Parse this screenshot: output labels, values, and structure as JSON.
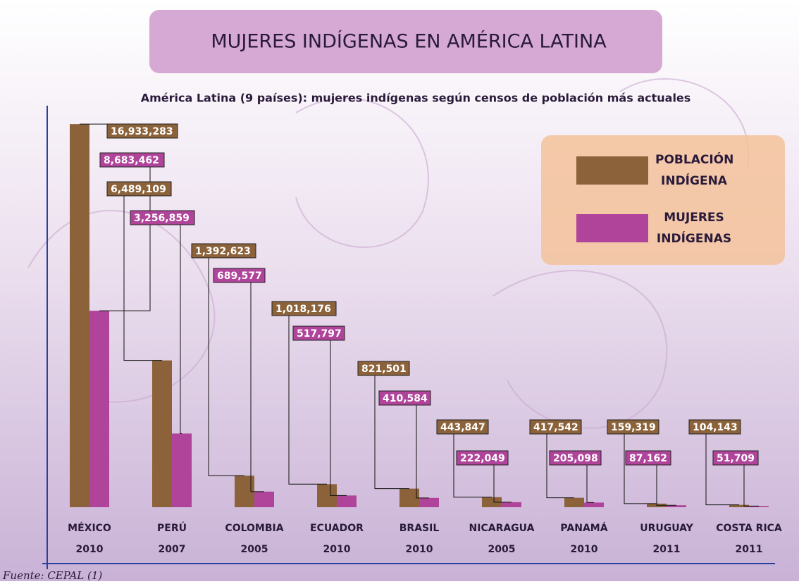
{
  "chart_data": {
    "type": "bar",
    "title": "MUJERES INDÍGENAS EN AMÉRICA LATINA",
    "subtitle": "América Latina (9 países): mujeres indígenas según censos de  población más actuales",
    "source": "Fuente:  CEPAL (1)",
    "categories": [
      "MÉXICO",
      "PERÚ",
      "COLOMBIA",
      "ECUADOR",
      "BRASIL",
      "NICARAGUA",
      "PANAMÁ",
      "URUGUAY",
      "COSTA RICA"
    ],
    "category_years": [
      "2010",
      "2007",
      "2005",
      "2010",
      "2010",
      "2005",
      "2010",
      "2011",
      "2011"
    ],
    "ylim": [
      0,
      17000000
    ],
    "series": [
      {
        "name": "POBLACIÓN INDÍGENA",
        "color": "#8b6239",
        "values": [
          16933283,
          6489109,
          1392623,
          1018176,
          821501,
          443847,
          417542,
          159319,
          104143
        ],
        "value_labels": [
          "16,933,283",
          "6,489,109",
          "1,392,623",
          "1,018,176",
          "821,501",
          "443,847",
          "417,542",
          "159,319",
          "104,143"
        ]
      },
      {
        "name": "MUJERES INDÍGENAS",
        "color": "#b0449a",
        "values": [
          8683462,
          3256859,
          689577,
          517797,
          410584,
          222049,
          205098,
          87162,
          51709
        ],
        "value_labels": [
          "8,683,462",
          "3,256,859",
          "689,577",
          "517,797",
          "410,584",
          "222,049",
          "205,098",
          "87,162",
          "51,709"
        ]
      }
    ]
  }
}
